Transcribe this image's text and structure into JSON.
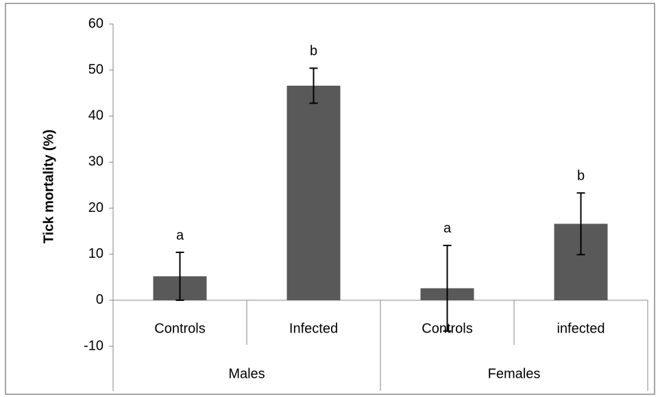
{
  "chart_data": {
    "type": "bar",
    "y_label": "Tick mortality (%)",
    "categories": [
      "Controls",
      "Infected",
      "Controls",
      "infected"
    ],
    "groups": [
      "Males",
      "Females"
    ],
    "values": [
      5.2,
      46.6,
      2.6,
      16.6
    ],
    "errors": [
      5.2,
      3.8,
      9.3,
      6.7
    ],
    "annotations": [
      "a",
      "b",
      "a",
      "b"
    ],
    "color": "#595959",
    "ylim": [
      -10,
      60
    ],
    "yticks": [
      -10,
      0,
      10,
      20,
      30,
      40,
      50,
      60
    ],
    "grid": false
  }
}
